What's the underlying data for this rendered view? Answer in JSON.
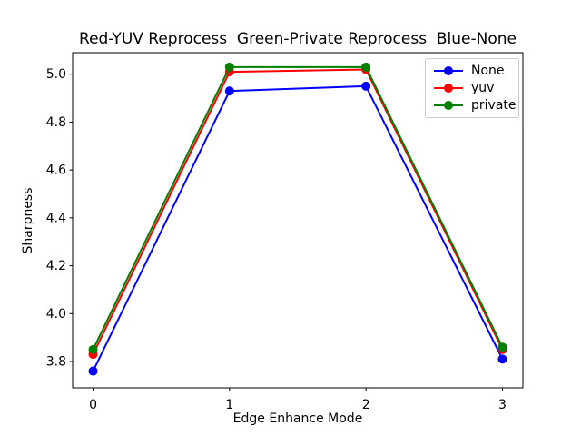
{
  "chart_data": {
    "type": "line",
    "title": "Red-YUV Reprocess  Green-Private Reprocess  Blue-None",
    "xlabel": "Edge Enhance Mode",
    "ylabel": "Sharpness",
    "x": [
      0,
      1,
      2,
      3
    ],
    "series": [
      {
        "name": "None",
        "color": "#0000ff",
        "marker": "o",
        "values": [
          3.76,
          4.93,
          4.95,
          3.81
        ]
      },
      {
        "name": "yuv",
        "color": "#ff0000",
        "marker": "o",
        "values": [
          3.83,
          5.01,
          5.02,
          3.85
        ]
      },
      {
        "name": "private",
        "color": "#008000",
        "marker": "o",
        "values": [
          3.85,
          5.03,
          5.03,
          3.86
        ]
      }
    ],
    "xlim": [
      -0.15,
      3.15
    ],
    "ylim": [
      3.69,
      5.09
    ],
    "xticks": {
      "values": [
        0,
        1,
        2,
        3
      ],
      "labels": [
        "0",
        "1",
        "2",
        "3"
      ]
    },
    "yticks": {
      "values": [
        3.8,
        4.0,
        4.2,
        4.4,
        4.6,
        4.8,
        5.0
      ],
      "labels": [
        "3.8",
        "4.0",
        "4.2",
        "4.4",
        "4.6",
        "4.8",
        "5.0"
      ]
    },
    "grid": false,
    "legend_position": "upper right",
    "axes_color": "#000000",
    "background_color": "#ffffff"
  }
}
